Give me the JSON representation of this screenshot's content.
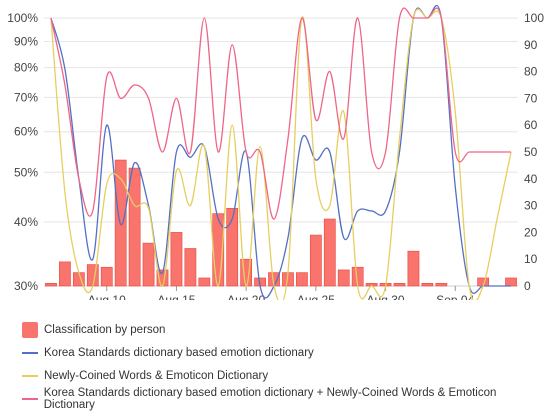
{
  "chart_data": {
    "type": "bar+line",
    "title": "",
    "xlabel": "",
    "y_left": {
      "min": 30,
      "max": 100,
      "unit": "%",
      "ticks": [
        "30%",
        "40%",
        "50%",
        "60%",
        "70%",
        "80%",
        "90%",
        "100%"
      ],
      "scale": "log"
    },
    "y_right": {
      "min": 0,
      "max": 100,
      "ticks": [
        "0",
        "10",
        "20",
        "30",
        "40",
        "50",
        "60",
        "70",
        "80",
        "90",
        "100"
      ]
    },
    "x_ticks": [
      {
        "day": 10,
        "label": "Aug 10"
      },
      {
        "day": 15,
        "label": "Aug 15"
      },
      {
        "day": 20,
        "label": "Aug 20"
      },
      {
        "day": 25,
        "label": "Aug 25"
      },
      {
        "day": 30,
        "label": "Aug 30"
      },
      {
        "day": 35,
        "label": "Sep 04"
      }
    ],
    "x_range_days": [
      6,
      39
    ],
    "bars": {
      "name": "Classification by person",
      "color": "#f8746c",
      "x_days": [
        6,
        7,
        8,
        9,
        10,
        11,
        12,
        13,
        14,
        15,
        16,
        17,
        18,
        19,
        20,
        21,
        22,
        23,
        24,
        25,
        26,
        27,
        28,
        29,
        30,
        31,
        32,
        33,
        34,
        35,
        36,
        37,
        38,
        39
      ],
      "values": [
        1,
        9,
        5,
        8,
        7,
        47,
        44,
        16,
        6,
        20,
        14,
        3,
        27,
        29,
        10,
        3,
        5,
        5,
        5,
        19,
        25,
        6,
        7,
        1,
        1,
        1,
        13,
        1,
        1,
        0,
        0,
        3,
        0,
        3
      ]
    },
    "lines": [
      {
        "name": "Korea Standards dictionary based emotion dictionary",
        "color": "#5470c6",
        "x_days": [
          6,
          7,
          8,
          9,
          10,
          11,
          12,
          13,
          14,
          15,
          16,
          17,
          18,
          19,
          20,
          21,
          22,
          23,
          24,
          25,
          26,
          27,
          28,
          29,
          30,
          31,
          32,
          33,
          34,
          35,
          36,
          37,
          38,
          39
        ],
        "values": [
          100,
          81,
          40,
          10,
          60,
          23,
          46,
          30,
          5,
          50,
          48,
          52,
          25,
          25,
          50,
          0,
          0,
          18,
          55,
          47,
          50,
          18,
          28,
          28,
          28,
          50,
          100,
          100,
          100,
          37,
          0,
          0,
          0,
          0
        ]
      },
      {
        "name": "Newly-Coined Words & Emoticon Dictionary",
        "color": "#e6cf60",
        "x_days": [
          6,
          7,
          8,
          9,
          10,
          11,
          12,
          13,
          14,
          15,
          16,
          17,
          18,
          19,
          20,
          21,
          22,
          23,
          24,
          25,
          26,
          27,
          28,
          29,
          30,
          31,
          32,
          33,
          34,
          35,
          36,
          37,
          38,
          39
        ],
        "values": [
          100,
          35,
          5,
          0,
          38,
          40,
          30,
          29,
          0,
          43,
          30,
          52,
          0,
          60,
          0,
          52,
          0,
          5,
          100,
          40,
          30,
          65,
          0,
          0,
          0,
          55,
          100,
          100,
          100,
          65,
          0,
          0,
          25,
          50
        ]
      },
      {
        "name": "Korea Standards dictionary based emotion dictionary + Newly-Coined Words & Emoticon Dictionary",
        "color": "#ee6688",
        "x_days": [
          6,
          7,
          8,
          9,
          10,
          11,
          12,
          13,
          14,
          15,
          16,
          17,
          18,
          19,
          20,
          21,
          22,
          23,
          24,
          25,
          26,
          27,
          28,
          29,
          30,
          31,
          32,
          33,
          34,
          35,
          36,
          37,
          38,
          39
        ],
        "values": [
          100,
          75,
          40,
          28,
          78,
          70,
          75,
          70,
          50,
          70,
          50,
          100,
          50,
          90,
          50,
          50,
          25,
          55,
          100,
          62,
          80,
          55,
          100,
          50,
          50,
          100,
          100,
          100,
          100,
          50,
          50,
          50,
          50,
          50
        ]
      }
    ],
    "legend_position": "bottom",
    "grid": true
  }
}
